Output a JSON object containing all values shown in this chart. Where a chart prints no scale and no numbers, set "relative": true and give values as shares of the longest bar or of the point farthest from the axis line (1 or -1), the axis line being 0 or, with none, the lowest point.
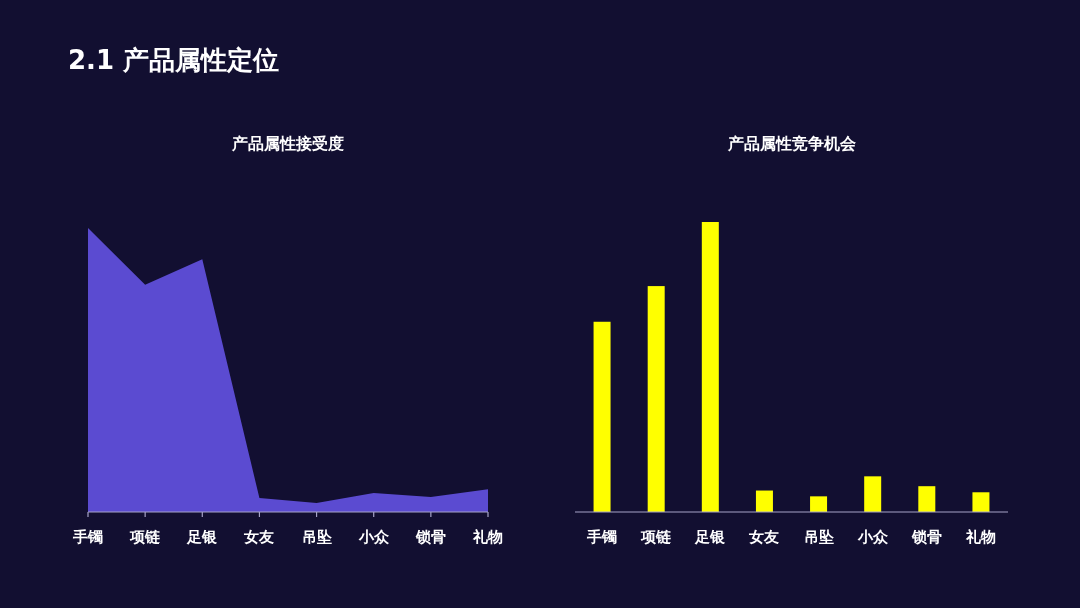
{
  "chart_data": [
    {
      "type": "other",
      "title": "2.1 产品属性定位"
    },
    {
      "type": "area",
      "title": "产品属性接受度",
      "relative": true,
      "color": "#5b4bd1",
      "categories": [
        "手镯",
        "项链",
        "足银",
        "女友",
        "吊坠",
        "小众",
        "锁骨",
        "礼物"
      ],
      "values": [
        1,
        0.8,
        0.89,
        0.049,
        0.032,
        0.067,
        0.053,
        0.08
      ]
    },
    {
      "type": "bar",
      "title": "产品属性竞争机会",
      "relative": true,
      "color": "#ffff00",
      "categories": [
        "手镯",
        "项链",
        "足银",
        "女友",
        "吊坠",
        "小众",
        "锁骨",
        "礼物"
      ],
      "values": [
        0.656,
        0.779,
        1,
        0.074,
        0.054,
        0.123,
        0.089,
        0.068
      ]
    }
  ]
}
